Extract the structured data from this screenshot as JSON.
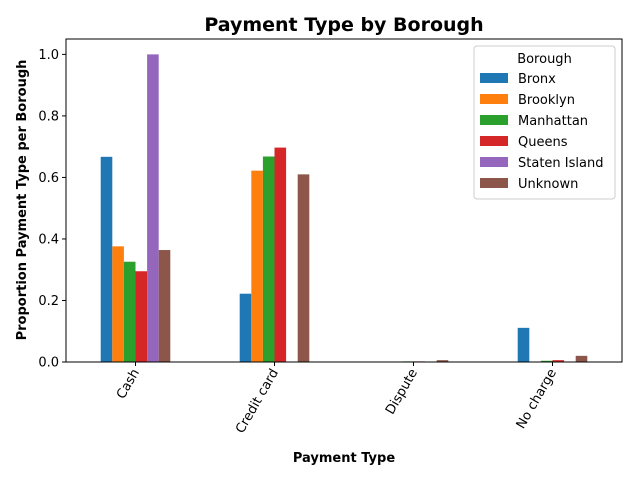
{
  "chart_data": {
    "type": "bar",
    "title": "Payment Type by Borough",
    "xlabel": "Payment Type",
    "ylabel": "Proportion Payment Type per Borough",
    "categories": [
      "Cash",
      "Credit card",
      "Dispute",
      "No charge"
    ],
    "series": [
      {
        "name": "Bronx",
        "color": "#1f77b4",
        "values": [
          0.667,
          0.222,
          0.0,
          0.111
        ]
      },
      {
        "name": "Brooklyn",
        "color": "#ff7f0e",
        "values": [
          0.376,
          0.622,
          0.0,
          0.0
        ]
      },
      {
        "name": "Manhattan",
        "color": "#2ca02c",
        "values": [
          0.326,
          0.668,
          0.002,
          0.004
        ]
      },
      {
        "name": "Queens",
        "color": "#d62728",
        "values": [
          0.295,
          0.697,
          0.002,
          0.006
        ]
      },
      {
        "name": "Staten Island",
        "color": "#9467bd",
        "values": [
          1.0,
          0.0,
          0.0,
          0.0
        ]
      },
      {
        "name": "Unknown",
        "color": "#8c564b",
        "values": [
          0.364,
          0.61,
          0.006,
          0.02
        ]
      }
    ],
    "ylim": [
      0,
      1.05
    ],
    "yticks": [
      "0.0",
      "0.2",
      "0.4",
      "0.6",
      "0.8",
      "1.0"
    ],
    "legend": {
      "title": "Borough",
      "placement": "top-right"
    },
    "grid": false
  }
}
